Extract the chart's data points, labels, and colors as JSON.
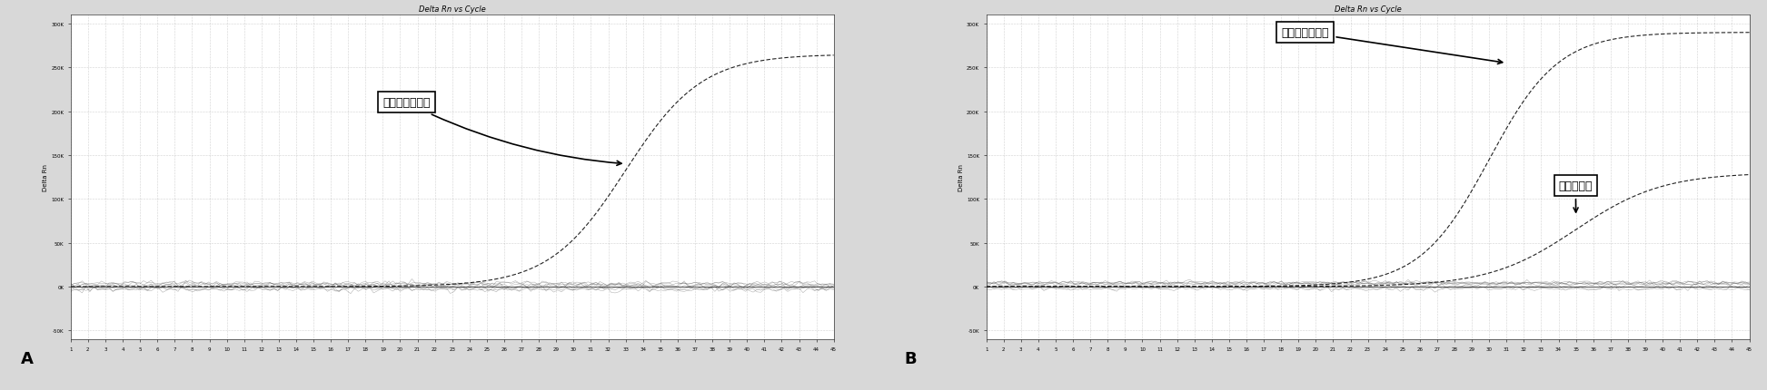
{
  "title": "Delta Rn vs Cycle",
  "ylabel": "Delta Rn",
  "xlim": [
    1,
    45
  ],
  "ylim_A": [
    -60000,
    310000
  ],
  "ylim_B": [
    -60000,
    310000
  ],
  "yticks": [
    0,
    50000,
    100000,
    150000,
    200000,
    250000,
    300000
  ],
  "ytick_labels": [
    "0K",
    "50K",
    "100K",
    "150K",
    "200K",
    "250K",
    "300K"
  ],
  "ytick_bottom": -50000,
  "ytick_bottom_label": "-50K",
  "panel_A_label": "A",
  "panel_B_label": "B",
  "annotation_A": "敏感株阳性对照",
  "annotation_B1": "敏感株阳性对照",
  "annotation_B2": "临床敏感株",
  "bg_color": "#f0f0f0",
  "plot_bg": "#ffffff",
  "grid_color": "#888888",
  "curve_color": "#222222",
  "flat_color": "#555555",
  "midpoint_A": 33,
  "scale_A": 2.2,
  "top_A": 265000,
  "midpoint_B1": 30,
  "scale_B1": 2.0,
  "top_B1": 290000,
  "midpoint_B2": 35,
  "scale_B2": 2.5,
  "top_B2": 130000
}
